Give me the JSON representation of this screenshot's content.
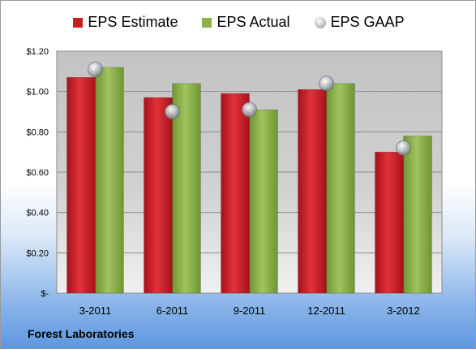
{
  "chart_data": {
    "type": "bar",
    "categories": [
      "3-2011",
      "6-2011",
      "9-2011",
      "12-2011",
      "3-2012"
    ],
    "series": [
      {
        "name": "EPS Estimate",
        "kind": "bar",
        "color": "#c81e1e",
        "values": [
          1.07,
          0.97,
          0.99,
          1.01,
          0.7
        ]
      },
      {
        "name": "EPS Actual",
        "kind": "bar",
        "color": "#8cb04a",
        "values": [
          1.12,
          1.04,
          0.91,
          1.04,
          0.78
        ]
      },
      {
        "name": "EPS GAAP",
        "kind": "marker",
        "color": "#b7bcc4",
        "values": [
          1.11,
          0.9,
          0.91,
          1.04,
          0.72
        ]
      }
    ],
    "ylim": [
      0,
      1.2
    ],
    "yticks": [
      0,
      0.2,
      0.4,
      0.6,
      0.8,
      1.0,
      1.2
    ],
    "ytick_labels": [
      "$-",
      "$0.20",
      "$0.40",
      "$0.60",
      "$0.80",
      "$1.00",
      "$1.20"
    ],
    "grid": true,
    "legend_position": "top",
    "title": "",
    "xlabel": "",
    "ylabel": ""
  },
  "footer": {
    "company": "Forest Laboratories"
  }
}
